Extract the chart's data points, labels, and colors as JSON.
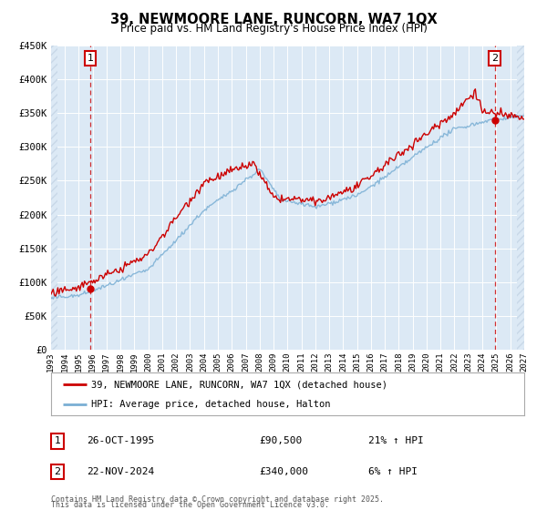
{
  "title": "39, NEWMOORE LANE, RUNCORN, WA7 1QX",
  "subtitle": "Price paid vs. HM Land Registry's House Price Index (HPI)",
  "bg_color": "#dce9f5",
  "grid_color": "#ffffff",
  "legend_label_red": "39, NEWMOORE LANE, RUNCORN, WA7 1QX (detached house)",
  "legend_label_blue": "HPI: Average price, detached house, Halton",
  "marker1_date": "26-OCT-1995",
  "marker1_price": "£90,500",
  "marker1_hpi": "21% ↑ HPI",
  "marker1_x": 1995.82,
  "marker1_y": 90500,
  "marker2_date": "22-NOV-2024",
  "marker2_price": "£340,000",
  "marker2_hpi": "6% ↑ HPI",
  "marker2_x": 2024.9,
  "marker2_y": 340000,
  "xlim": [
    1993.0,
    2027.0
  ],
  "ylim": [
    0,
    450000
  ],
  "yticks": [
    0,
    50000,
    100000,
    150000,
    200000,
    250000,
    300000,
    350000,
    400000,
    450000
  ],
  "ytick_labels": [
    "£0",
    "£50K",
    "£100K",
    "£150K",
    "£200K",
    "£250K",
    "£300K",
    "£350K",
    "£400K",
    "£450K"
  ],
  "footer_line1": "Contains HM Land Registry data © Crown copyright and database right 2025.",
  "footer_line2": "This data is licensed under the Open Government Licence v3.0.",
  "red_color": "#cc0000",
  "blue_color": "#7aafd4",
  "hatch_color": "#c8d8e8",
  "label1": "1",
  "label2": "2"
}
